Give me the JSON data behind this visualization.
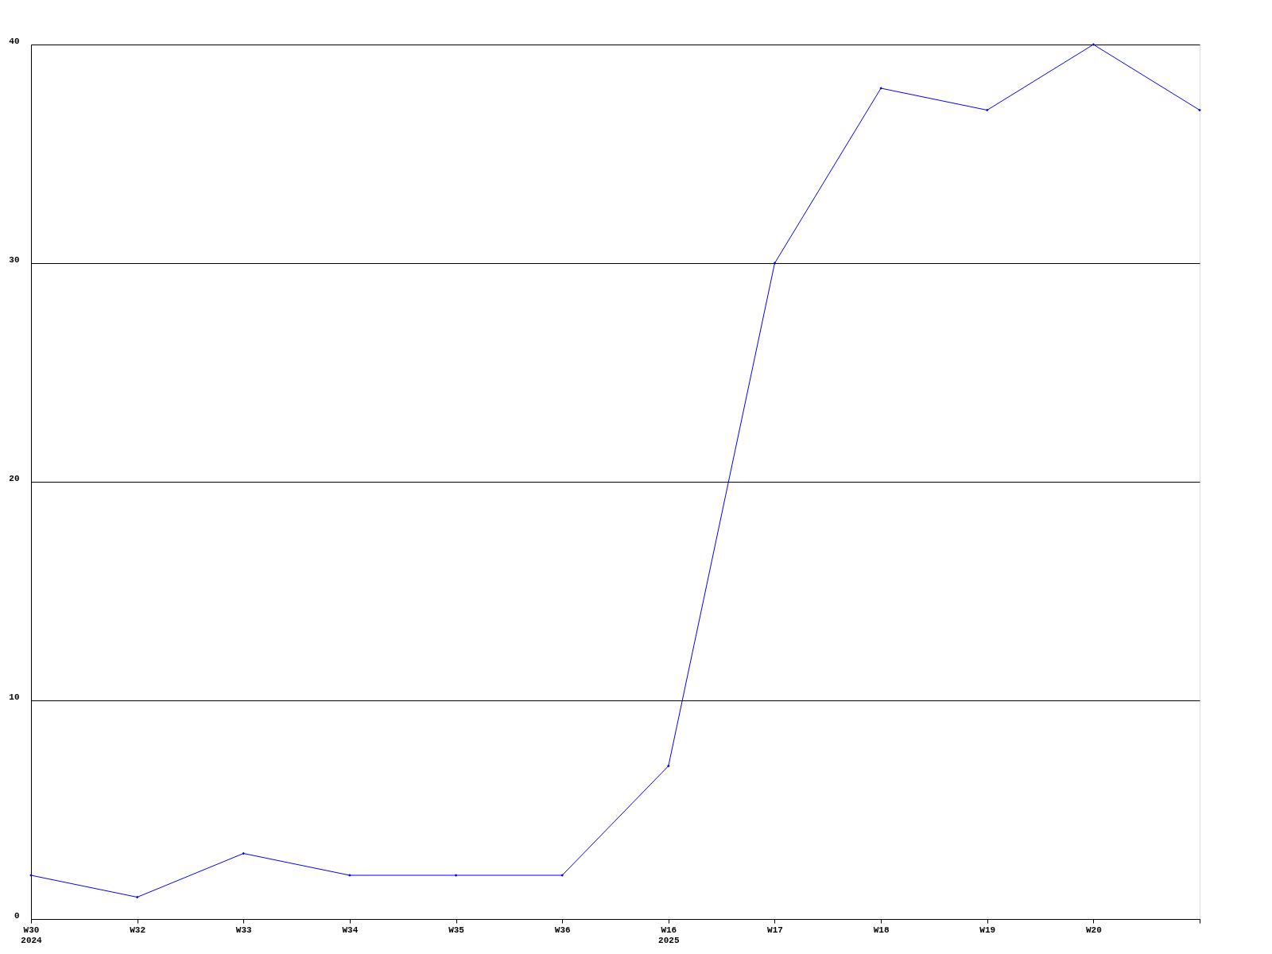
{
  "chart_data": {
    "type": "line",
    "categories": [
      "W30\n2024",
      "W32",
      "W33",
      "W34",
      "W35",
      "W36",
      "W16\n2025",
      "W17",
      "W18",
      "W19",
      "W20",
      null
    ],
    "series": [
      {
        "color": "#0000ff",
        "values": [
          2,
          1,
          3,
          2,
          2,
          2,
          7,
          30,
          38,
          37,
          40,
          37
        ]
      }
    ],
    "ylim": [
      0,
      40
    ],
    "yticks": [
      0,
      10,
      20,
      30,
      40
    ],
    "grid": "y",
    "marker": "diamond",
    "line_style": "solid"
  }
}
